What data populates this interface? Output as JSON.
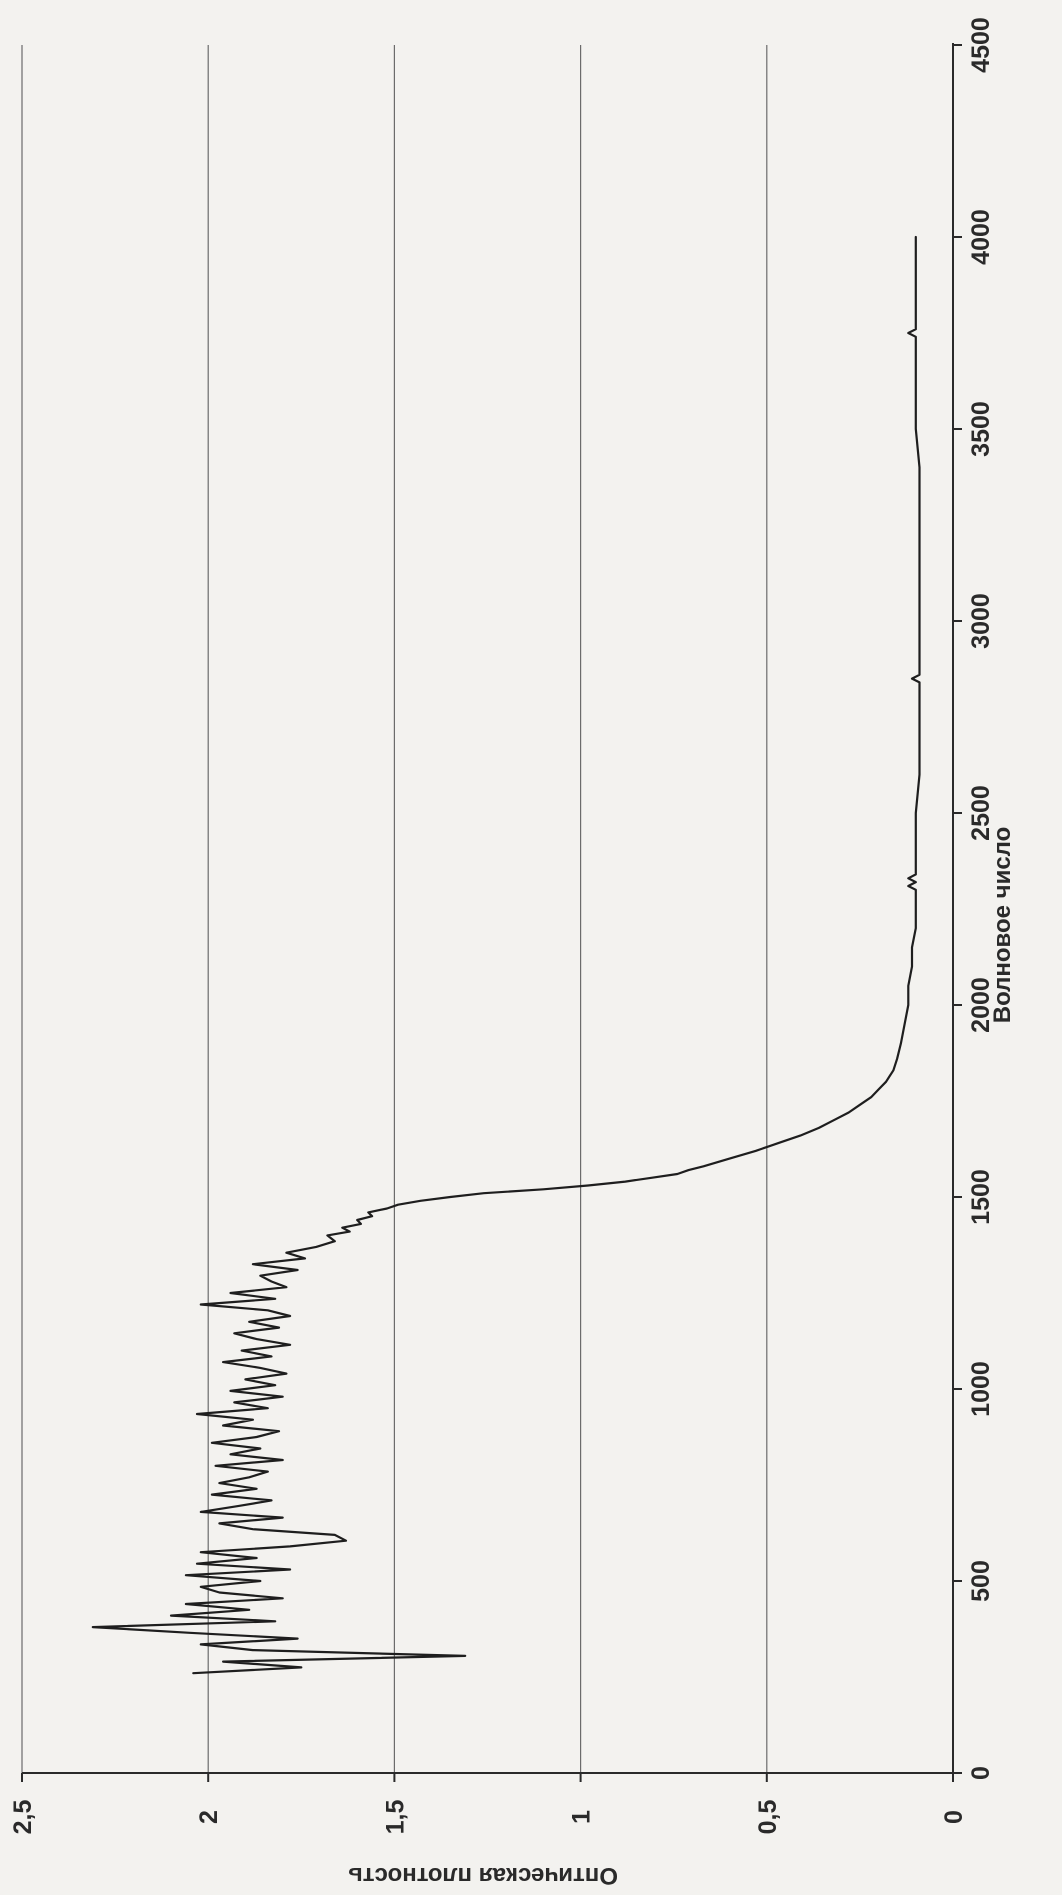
{
  "chart_data": {
    "type": "line",
    "orientation": "rotated-90-clockwise",
    "title": "",
    "xlabel": "Волновое число",
    "ylabel": "Оптическая плотность",
    "xlim": [
      0,
      4500
    ],
    "ylim": [
      0,
      2.5
    ],
    "xticks": [
      0,
      500,
      1000,
      1500,
      2000,
      2500,
      3000,
      3500,
      4000,
      4500
    ],
    "xtick_labels": [
      "0",
      "500",
      "1000",
      "1500",
      "2000",
      "2500",
      "3000",
      "3500",
      "4000",
      "4500"
    ],
    "yticks": [
      0,
      0.5,
      1,
      1.5,
      2,
      2.5
    ],
    "ytick_labels": [
      "0",
      "0,5",
      "1",
      "1,5",
      "2",
      "2,5"
    ],
    "grid": "horizontal-major",
    "legend": "none",
    "line_color": "#1e1e1e",
    "series": [
      {
        "x": [
          260,
          275,
          290,
          305,
          320,
          335,
          350,
          365,
          380,
          395,
          410,
          425,
          440,
          455,
          470,
          485,
          500,
          515,
          530,
          545,
          560,
          575,
          590,
          605,
          620,
          635,
          650,
          665,
          680,
          695,
          710,
          725,
          740,
          755,
          770,
          785,
          800,
          815,
          830,
          845,
          860,
          875,
          890,
          905,
          920,
          935,
          950,
          965,
          980,
          995,
          1010,
          1025,
          1040,
          1055,
          1070,
          1085,
          1100,
          1115,
          1130,
          1145,
          1160,
          1175,
          1190,
          1205,
          1220,
          1235,
          1250,
          1265,
          1280,
          1295,
          1310,
          1325,
          1340,
          1355,
          1370,
          1385,
          1400,
          1410,
          1420,
          1430,
          1440,
          1450,
          1460,
          1470,
          1480,
          1490,
          1500,
          1510,
          1520,
          1530,
          1540,
          1550,
          1560,
          1570,
          1580,
          1600,
          1620,
          1640,
          1660,
          1680,
          1700,
          1720,
          1740,
          1760,
          1780,
          1800,
          1830,
          1860,
          1900,
          1950,
          2000,
          2050,
          2100,
          2150,
          2200,
          2250,
          2300,
          2310,
          2320,
          2330,
          2340,
          2400,
          2500,
          2600,
          2700,
          2800,
          2840,
          2850,
          2860,
          2900,
          3000,
          3100,
          3200,
          3300,
          3400,
          3500,
          3600,
          3700,
          3740,
          3750,
          3760,
          3800,
          3900,
          4000
        ],
        "y": [
          2.04,
          1.75,
          1.96,
          1.31,
          1.88,
          2.02,
          1.76,
          2.05,
          2.31,
          1.82,
          2.1,
          1.89,
          2.06,
          1.8,
          1.97,
          2.02,
          1.86,
          2.06,
          1.78,
          2.03,
          1.87,
          2.02,
          1.78,
          1.63,
          1.66,
          1.88,
          1.97,
          1.8,
          2.02,
          1.92,
          1.83,
          1.99,
          1.87,
          1.97,
          1.89,
          1.84,
          1.98,
          1.8,
          1.94,
          1.86,
          1.99,
          1.87,
          1.81,
          1.96,
          1.88,
          2.03,
          1.84,
          1.93,
          1.8,
          1.94,
          1.82,
          1.9,
          1.79,
          1.86,
          1.96,
          1.83,
          1.91,
          1.78,
          1.87,
          1.93,
          1.81,
          1.89,
          1.78,
          1.84,
          2.02,
          1.82,
          1.94,
          1.79,
          1.83,
          1.86,
          1.76,
          1.88,
          1.74,
          1.79,
          1.71,
          1.66,
          1.68,
          1.62,
          1.64,
          1.59,
          1.6,
          1.56,
          1.57,
          1.52,
          1.49,
          1.43,
          1.35,
          1.26,
          1.1,
          0.98,
          0.88,
          0.81,
          0.74,
          0.71,
          0.67,
          0.6,
          0.53,
          0.47,
          0.41,
          0.36,
          0.32,
          0.28,
          0.25,
          0.22,
          0.2,
          0.18,
          0.16,
          0.15,
          0.14,
          0.13,
          0.12,
          0.12,
          0.11,
          0.11,
          0.1,
          0.1,
          0.1,
          0.12,
          0.1,
          0.12,
          0.1,
          0.1,
          0.1,
          0.09,
          0.09,
          0.09,
          0.09,
          0.11,
          0.09,
          0.09,
          0.09,
          0.09,
          0.09,
          0.09,
          0.09,
          0.1,
          0.1,
          0.1,
          0.1,
          0.12,
          0.1,
          0.1,
          0.1,
          0.1
        ]
      }
    ]
  }
}
